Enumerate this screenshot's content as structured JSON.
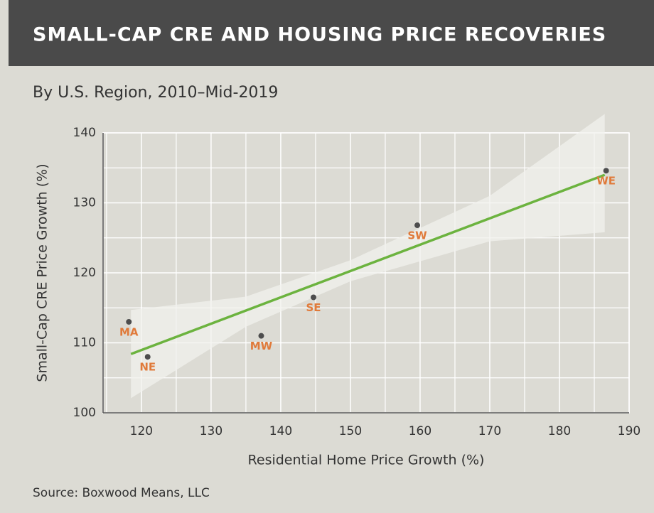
{
  "chart_data": {
    "type": "scatter",
    "title": "SMALL-CAP CRE AND HOUSING PRICE RECOVERIES",
    "subtitle": "By U.S. Region, 2010–Mid-2019",
    "x_label": "Residential Home Price Growth (%)",
    "y_label": "Small-Cap CRE Price Growth (%)",
    "source": "Source: Boxwood Means, LLC",
    "point_labels": [
      "MA",
      "NE",
      "MW",
      "SE",
      "SW",
      "WE"
    ],
    "x": [
      118.2,
      120.9,
      137.2,
      144.7,
      159.6,
      186.7
    ],
    "values": [
      113.0,
      108.0,
      111.0,
      116.5,
      126.8,
      134.6
    ],
    "color": "#4d4d4d",
    "label_color": "#e07a3a",
    "trend": {
      "color": "#6cb33f",
      "x": [
        118.5,
        186.5
      ],
      "values": [
        108.4,
        134.0
      ]
    },
    "band": {
      "color": "#f2f2ee",
      "x": [
        118.5,
        135,
        150,
        170,
        186.5
      ],
      "upper": [
        114.7,
        116.6,
        121.8,
        131.0,
        142.7
      ],
      "lower": [
        102.1,
        112.3,
        118.8,
        124.5,
        125.8
      ]
    },
    "xlim": [
      114.5,
      190
    ],
    "ylim": [
      100,
      140
    ],
    "xticks": [
      120,
      130,
      140,
      150,
      160,
      170,
      180,
      190
    ],
    "yticks": [
      100,
      110,
      120,
      130,
      140
    ],
    "grid": true,
    "grid_minor": true
  }
}
